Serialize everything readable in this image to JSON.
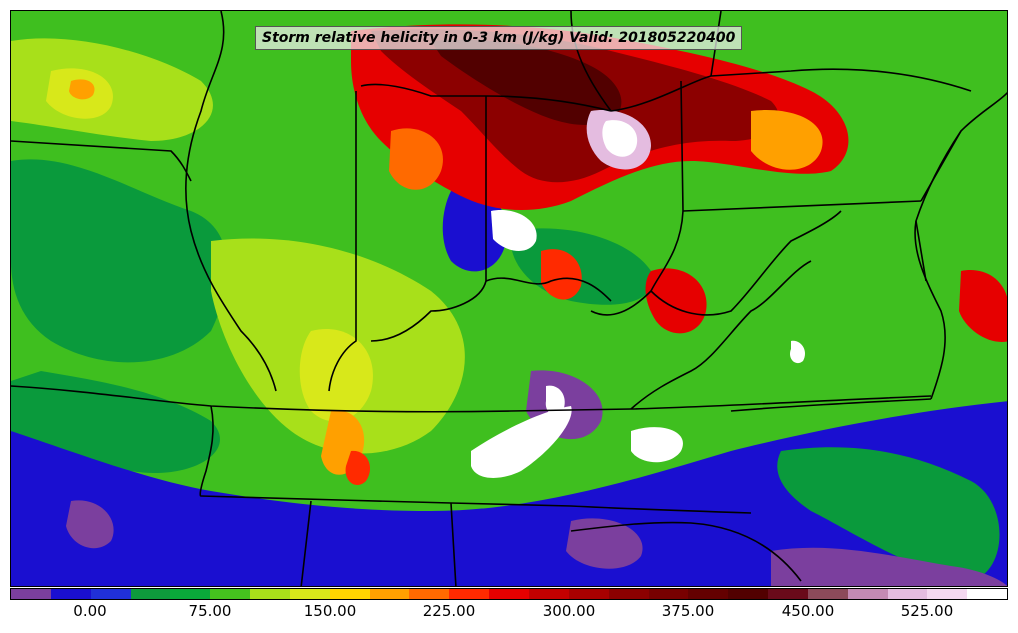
{
  "map": {
    "title": "Storm relative helicity in 0-3 km (J/kg) Valid: 201805220400",
    "variable": "Storm relative helicity in 0-3 km",
    "units": "J/kg",
    "valid": "201805220400"
  },
  "colorbar": {
    "colors": [
      "#7b3f9e",
      "#1a0fd0",
      "#2030d8",
      "#0e9a3c",
      "#0aa83a",
      "#45c21e",
      "#a8e01a",
      "#d8e81a",
      "#ffd400",
      "#ffa000",
      "#ff6a00",
      "#ff2a00",
      "#e60000",
      "#c40000",
      "#a80000",
      "#8c0000",
      "#780000",
      "#640000",
      "#520000",
      "#6a0a1a",
      "#8c4a5a",
      "#c48ab4",
      "#e4bce0",
      "#f4d8f0",
      "#ffffff"
    ],
    "tick_labels": [
      "0.00",
      "75.00",
      "150.00",
      "225.00",
      "300.00",
      "375.00",
      "450.00",
      "525.00"
    ]
  },
  "legend_colors": {
    "background": "#3fbf1f",
    "boundaries": "#000000"
  }
}
